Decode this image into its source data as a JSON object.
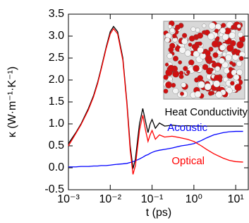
{
  "chart_data": {
    "type": "line",
    "xlabel": "t (ps)",
    "ylabel": "κ (W·m⁻¹·K⁻¹)",
    "xscale": "log",
    "xlim": [
      0.001,
      20
    ],
    "ylim": [
      -0.5,
      3.5
    ],
    "xticks": [
      {
        "value": 0.001,
        "label": "10⁻³"
      },
      {
        "value": 0.01,
        "label": "10⁻²"
      },
      {
        "value": 0.1,
        "label": "10⁻¹"
      },
      {
        "value": 1,
        "label": "10⁰"
      },
      {
        "value": 10,
        "label": "10¹"
      }
    ],
    "yticks": [
      -0.5,
      {
        "value": 0,
        "label": "0.0"
      },
      0.5,
      {
        "value": 1,
        "label": "1.0"
      },
      1.5,
      {
        "value": 2,
        "label": "2.0"
      },
      2.5,
      {
        "value": 3,
        "label": "3.0"
      },
      3.5
    ],
    "x": [
      0.001,
      0.0015,
      0.002,
      0.003,
      0.004,
      0.005,
      0.006,
      0.008,
      0.01,
      0.012,
      0.015,
      0.02,
      0.025,
      0.03,
      0.035,
      0.04,
      0.05,
      0.06,
      0.07,
      0.08,
      0.09,
      0.1,
      0.12,
      0.15,
      0.2,
      0.3,
      0.5,
      0.7,
      1,
      1.5,
      2,
      3,
      5,
      7,
      10,
      15
    ],
    "series": [
      {
        "name": "Heat Conductivity",
        "color": "#000000",
        "values": [
          0.55,
          0.8,
          1.0,
          1.35,
          1.65,
          1.95,
          2.25,
          2.75,
          3.1,
          3.22,
          3.1,
          2.5,
          1.5,
          0.5,
          -0.02,
          0.2,
          1.0,
          1.35,
          1.05,
          0.8,
          1.0,
          1.1,
          0.9,
          1.02,
          0.95,
          0.97,
          0.95,
          0.96,
          0.95,
          0.95,
          0.95,
          0.95,
          0.95,
          0.95,
          0.95,
          0.95
        ]
      },
      {
        "name": "Acoustic",
        "color": "#0000ff",
        "values": [
          0.02,
          0.02,
          0.03,
          0.03,
          0.04,
          0.04,
          0.05,
          0.05,
          0.06,
          0.07,
          0.08,
          0.09,
          0.1,
          0.12,
          0.14,
          0.16,
          0.2,
          0.24,
          0.28,
          0.3,
          0.33,
          0.35,
          0.38,
          0.4,
          0.42,
          0.45,
          0.5,
          0.52,
          0.55,
          0.62,
          0.68,
          0.75,
          0.8,
          0.82,
          0.83,
          0.83
        ]
      },
      {
        "name": "Optical",
        "color": "#ff0000",
        "values": [
          0.5,
          0.78,
          0.98,
          1.32,
          1.62,
          1.92,
          2.22,
          2.72,
          3.05,
          3.17,
          3.05,
          2.45,
          1.45,
          0.4,
          -0.15,
          0.05,
          0.85,
          1.2,
          0.85,
          0.6,
          0.75,
          0.85,
          0.65,
          0.75,
          0.7,
          0.72,
          0.68,
          0.65,
          0.6,
          0.5,
          0.42,
          0.32,
          0.22,
          0.17,
          0.14,
          0.13
        ]
      }
    ]
  }
}
